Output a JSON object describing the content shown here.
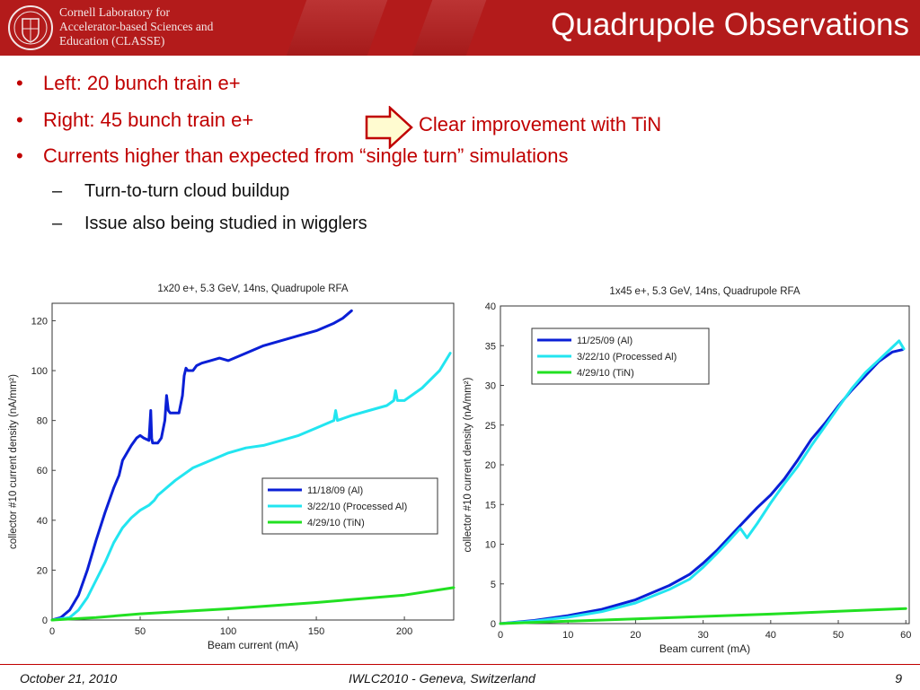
{
  "header": {
    "lab_name_lines": [
      "Cornell Laboratory for",
      "Accelerator-based Sciences and",
      "Education (CLASSE)"
    ],
    "title": "Quadrupole Observations",
    "brand_color": "#b31b1b"
  },
  "bullets": [
    {
      "text": "Left: 20 bunch train e+",
      "level": 1
    },
    {
      "text": "Right: 45 bunch train e+",
      "level": 1
    },
    {
      "text": "Currents higher than expected from “single turn” simulations",
      "level": 1
    },
    {
      "text": "Turn-to-turn cloud buildup",
      "level": 2
    },
    {
      "text": "Issue also being studied in wigglers",
      "level": 2
    }
  ],
  "bullet_symbol": "•",
  "dash_symbol": "–",
  "callout": {
    "text": "Clear improvement with TiN",
    "icon": "right-arrow-icon"
  },
  "footer": {
    "date": "October 21, 2010",
    "event": "IWLC2010 - Geneva, Switzerland",
    "page": "9"
  },
  "chart_data": [
    {
      "type": "line",
      "title": "1x20 e+, 5.3 GeV, 14ns, Quadrupole RFA",
      "xlabel": "Beam current (mA)",
      "ylabel": "collector #10 current density (nA/mm²)",
      "xlim": [
        0,
        228
      ],
      "ylim": [
        0,
        127
      ],
      "xticks": [
        0,
        50,
        100,
        150,
        200
      ],
      "yticks": [
        0,
        20,
        40,
        60,
        80,
        100,
        120
      ],
      "legend_position": "center-right",
      "series": [
        {
          "name": "11/18/09 (Al)",
          "color": "#0a1fd6",
          "x": [
            0,
            5,
            10,
            15,
            20,
            25,
            30,
            35,
            38,
            40,
            45,
            48,
            50,
            52,
            55,
            56,
            56.5,
            57,
            60,
            62,
            64,
            65,
            66,
            67,
            68,
            70,
            72,
            74,
            75,
            76,
            77,
            80,
            82,
            85,
            90,
            95,
            100,
            110,
            120,
            130,
            140,
            150,
            160,
            165,
            170
          ],
          "y": [
            0,
            1,
            4,
            10,
            20,
            32,
            43,
            53,
            58,
            64,
            70,
            73,
            74,
            73,
            72,
            84,
            73,
            71,
            71,
            73,
            80,
            90,
            84,
            83,
            83,
            83,
            83,
            90,
            98,
            101,
            100,
            100,
            102,
            103,
            104,
            105,
            104,
            107,
            110,
            112,
            114,
            116,
            119,
            121,
            124
          ]
        },
        {
          "name": "3/22/10 (Processed Al)",
          "color": "#22e5f0",
          "x": [
            0,
            10,
            15,
            20,
            25,
            30,
            35,
            40,
            45,
            50,
            55,
            58,
            60,
            70,
            80,
            90,
            100,
            110,
            120,
            130,
            140,
            150,
            160,
            161,
            162,
            170,
            180,
            190,
            194,
            195,
            196,
            200,
            210,
            220,
            226
          ],
          "y": [
            0,
            1,
            4,
            9,
            16,
            23,
            31,
            37,
            41,
            44,
            46,
            48,
            50,
            56,
            61,
            64,
            67,
            69,
            70,
            72,
            74,
            77,
            80,
            84,
            80,
            82,
            84,
            86,
            88,
            92,
            88,
            88,
            93,
            100,
            107
          ]
        },
        {
          "name": "4/29/10 (TiN)",
          "color": "#22e022",
          "x": [
            0,
            25,
            50,
            100,
            150,
            200,
            228
          ],
          "y": [
            0,
            1,
            2.5,
            4.5,
            7,
            10,
            13
          ]
        }
      ]
    },
    {
      "type": "line",
      "title": "1x45 e+, 5.3 GeV, 14ns, Quadrupole RFA",
      "xlabel": "Beam current (mA)",
      "ylabel": "collector #10 current density (nA/mm²)",
      "xlim": [
        0,
        60.5
      ],
      "ylim": [
        0,
        40
      ],
      "xticks": [
        0,
        10,
        20,
        30,
        40,
        50,
        60
      ],
      "yticks": [
        0,
        5,
        10,
        15,
        20,
        25,
        30,
        35,
        40
      ],
      "legend_position": "top-left",
      "series": [
        {
          "name": "11/25/09 (Al)",
          "color": "#0a1fd6",
          "x": [
            0,
            5,
            10,
            15,
            20,
            25,
            28,
            30,
            32,
            34,
            36,
            38,
            40,
            42,
            44,
            46,
            48,
            50,
            52,
            54,
            56,
            58,
            59.5
          ],
          "y": [
            0,
            0.4,
            1,
            1.8,
            3,
            4.8,
            6.2,
            7.6,
            9.2,
            11,
            12.8,
            14.6,
            16.2,
            18.2,
            20.6,
            23.2,
            25.2,
            27.4,
            29.4,
            31.2,
            33,
            34.2,
            34.5
          ]
        },
        {
          "name": "3/22/10 (Processed Al)",
          "color": "#22e5f0",
          "x": [
            0,
            5,
            10,
            15,
            20,
            25,
            28,
            30,
            32,
            34,
            35.5,
            36.5,
            38,
            40,
            42,
            44,
            46,
            48,
            50,
            52,
            54,
            56,
            58,
            59,
            59.7
          ],
          "y": [
            0,
            0.3,
            0.8,
            1.5,
            2.6,
            4.3,
            5.6,
            7.1,
            8.8,
            10.6,
            12,
            10.8,
            12.6,
            15.2,
            17.6,
            19.8,
            22.4,
            24.8,
            27.2,
            29.6,
            31.6,
            33.2,
            34.8,
            35.6,
            34.6
          ]
        },
        {
          "name": "4/29/10 (TiN)",
          "color": "#22e022",
          "x": [
            0,
            10,
            20,
            30,
            40,
            50,
            60
          ],
          "y": [
            0,
            0.3,
            0.6,
            0.9,
            1.2,
            1.55,
            1.9
          ]
        }
      ]
    }
  ]
}
